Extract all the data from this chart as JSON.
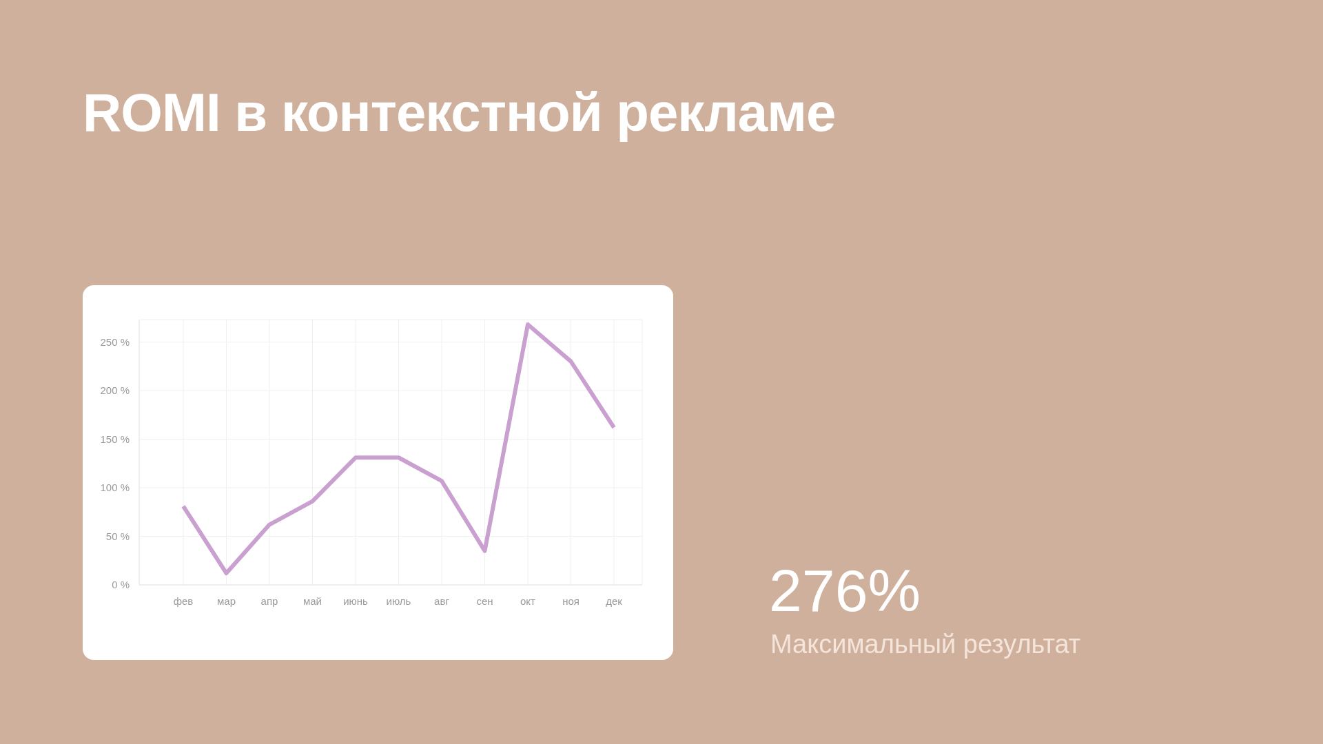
{
  "chart_data": {
    "type": "line",
    "title": "ROMI в контекстной рекламе",
    "categories": [
      "фев",
      "мар",
      "апр",
      "май",
      "июнь",
      "июль",
      "авг",
      "сен",
      "окт",
      "ноя",
      "дек"
    ],
    "series": [
      {
        "color": "#c9a0d0",
        "values": [
          81,
          12,
          62,
          86,
          131,
          131,
          107,
          35,
          268,
          230,
          162
        ]
      }
    ],
    "ylim": [
      0,
      273
    ],
    "yticks": [
      {
        "value": 0,
        "label": "0 %"
      },
      {
        "value": 50,
        "label": "50 %"
      },
      {
        "value": 100,
        "label": "100 %"
      },
      {
        "value": 150,
        "label": "150 %"
      },
      {
        "value": 200,
        "label": "200 %"
      },
      {
        "value": 250,
        "label": "250 %"
      }
    ],
    "grid": true,
    "marker": "none",
    "line_style": "solid",
    "annotations": [
      "276%",
      "Максимальный результат"
    ]
  }
}
